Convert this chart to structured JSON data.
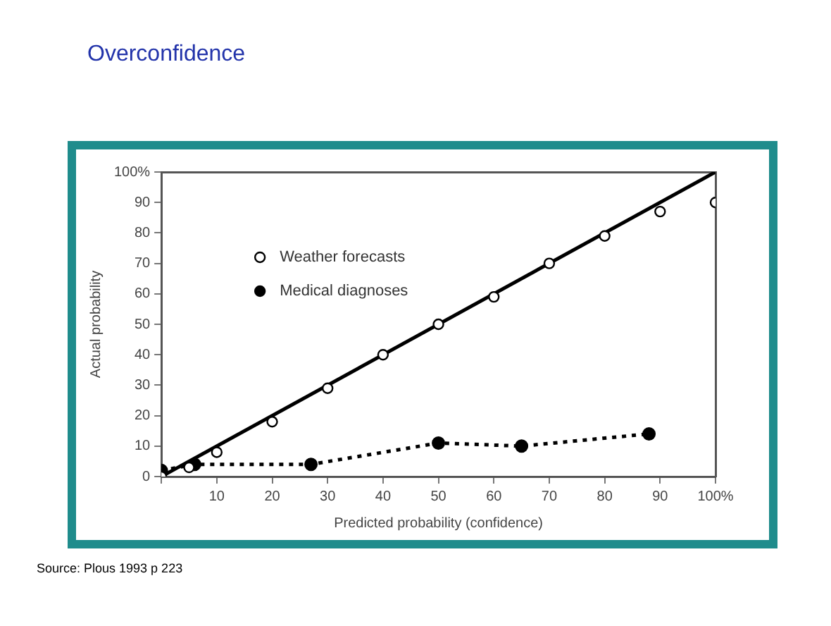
{
  "chart_data": {
    "type": "scatter",
    "title": "Overconfidence",
    "xlabel": "Predicted probability (confidence)",
    "ylabel": "Actual probability",
    "annotations": [
      "Source: Plous 1993 p 223"
    ],
    "series": [
      {
        "type": "line",
        "color": "#000000",
        "x": [
          0,
          100
        ],
        "values": [
          0,
          100
        ],
        "marker": "none",
        "line_style": "solid"
      },
      {
        "type": "scatter",
        "name": "Weather forecasts",
        "color": "#000000",
        "marker": "circle",
        "x": [
          0,
          5,
          10,
          20,
          30,
          40,
          50,
          60,
          70,
          80,
          90,
          100
        ],
        "values": [
          0,
          3,
          8,
          18,
          29,
          40,
          50,
          59,
          70,
          79,
          87,
          90
        ]
      },
      {
        "type": "line",
        "name": "Medical diagnoses",
        "color": "#000000",
        "marker": "circle",
        "line_style": "dotted",
        "x": [
          0,
          6,
          27,
          50,
          65,
          88
        ],
        "values": [
          2,
          4,
          4,
          11,
          10,
          14
        ]
      }
    ],
    "xlim": [
      0,
      100
    ],
    "ylim": [
      0,
      100
    ],
    "xticks": [
      {
        "value": 0,
        "label": null
      },
      10,
      20,
      30,
      40,
      50,
      60,
      70,
      80,
      90,
      {
        "value": 100,
        "label": "100%"
      }
    ],
    "yticks": [
      0,
      10,
      20,
      30,
      40,
      50,
      60,
      70,
      80,
      90,
      {
        "value": 100,
        "label": "100%"
      }
    ],
    "grid": false,
    "legend": "top left"
  }
}
